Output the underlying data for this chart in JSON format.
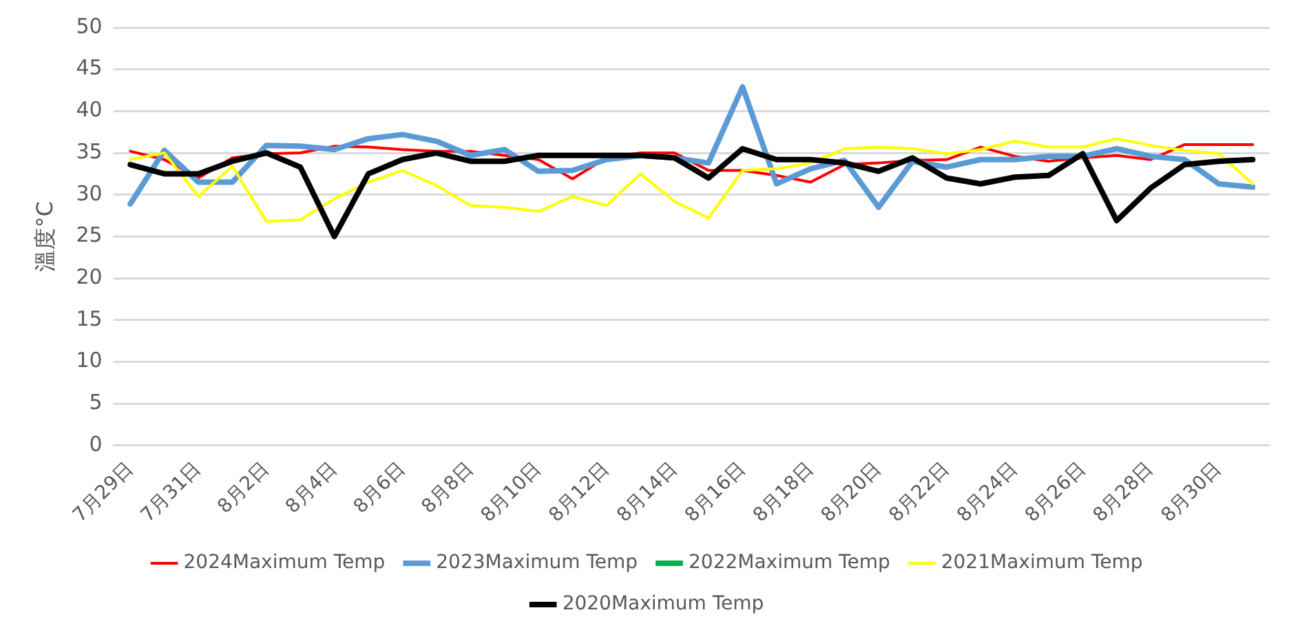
{
  "chart_data": {
    "type": "line",
    "ylabel": "溫度°C",
    "categories": [
      "7月29日",
      null,
      "7月31日",
      null,
      "8月2日",
      null,
      "8月4日",
      null,
      "8月6日",
      null,
      "8月8日",
      null,
      "8月10日",
      null,
      "8月12日",
      null,
      "8月14日",
      null,
      "8月16日",
      null,
      "8月18日",
      null,
      "8月20日",
      null,
      "8月22日",
      null,
      "8月24日",
      null,
      "8月26日",
      null,
      "8月28日",
      null,
      "8月30日",
      null
    ],
    "series": [
      {
        "name": "2024Maximum Temp",
        "color": "#ff0000",
        "values": [
          35.2,
          34.2,
          32,
          34.4,
          34.9,
          35,
          35.8,
          35.7,
          35.4,
          35.2,
          35.2,
          34.7,
          34.2,
          31.9,
          34.4,
          35,
          35,
          32.9,
          32.9,
          32.3,
          31.5,
          33.6,
          33.8,
          34.1,
          34.2,
          35.7,
          34.6,
          34,
          34.4,
          34.7,
          34.2,
          36,
          36,
          36
        ]
      },
      {
        "name": "2023Maximum Temp",
        "color": "#5b9bd5",
        "values": [
          28.9,
          35.3,
          31.5,
          31.5,
          35.9,
          35.8,
          35.4,
          36.7,
          37.2,
          36.4,
          34.7,
          35.4,
          32.8,
          32.9,
          34.2,
          34.7,
          34.4,
          33.8,
          42.9,
          31.3,
          33.1,
          34.1,
          28.5,
          34,
          33.3,
          34.2,
          34.2,
          34.6,
          34.6,
          35.5,
          34.6,
          34.2,
          31.3,
          30.9
        ]
      },
      {
        "name": "2022Maximum Temp",
        "color": "#00b050",
        "values": [
          null,
          null,
          null,
          null,
          null,
          null,
          null,
          null,
          null,
          null,
          null,
          null,
          null,
          null,
          null,
          null,
          null,
          null,
          null,
          null,
          null,
          null,
          null,
          null,
          null,
          null,
          null,
          null,
          null,
          null,
          null,
          null,
          null,
          null
        ]
      },
      {
        "name": "2021Maximum Temp",
        "color": "#ffff00",
        "values": [
          34.2,
          35,
          29.8,
          33.4,
          26.8,
          27,
          29.5,
          31.5,
          32.9,
          31.1,
          28.7,
          28.5,
          28,
          29.8,
          28.7,
          32.5,
          29.2,
          27.2,
          32.9,
          33.1,
          33.8,
          35.5,
          35.7,
          35.5,
          34.9,
          35.4,
          36.4,
          35.7,
          35.7,
          36.7,
          35.9,
          35.3,
          34.9,
          31.3
        ]
      },
      {
        "name": "2020Maximum Temp",
        "color": "#000000",
        "values": [
          33.6,
          32.5,
          32.5,
          34,
          35,
          33.3,
          25,
          32.5,
          34.2,
          35,
          34,
          34,
          34.7,
          34.7,
          34.7,
          34.7,
          34.4,
          32,
          35.5,
          34.2,
          34.2,
          33.8,
          32.8,
          34.4,
          32,
          31.3,
          32.1,
          32.3,
          34.9,
          26.9,
          30.8,
          33.6,
          34,
          34.2
        ]
      }
    ],
    "ylim": [
      0,
      50
    ],
    "yticks": [
      0,
      5,
      10,
      15,
      20,
      25,
      30,
      35,
      40,
      45,
      50
    ],
    "grid": "y",
    "legend": "bottom",
    "marker": "none",
    "line_style": "solid"
  }
}
